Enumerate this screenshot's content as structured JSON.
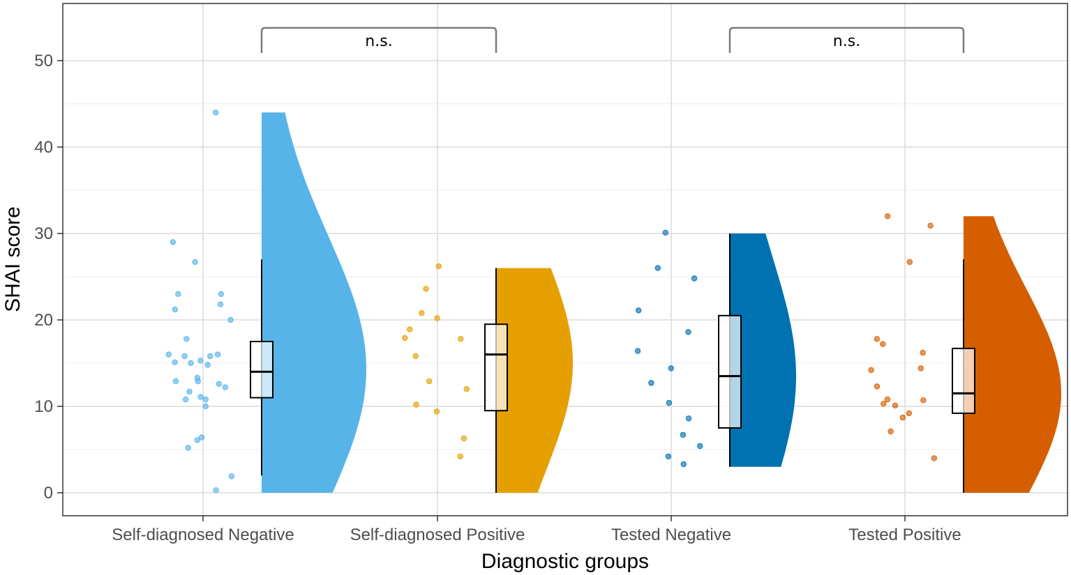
{
  "chart_data": {
    "type": "raincloud",
    "xlabel": "Diagnostic groups",
    "ylabel": "SHAI score",
    "ylim": [
      -2.6,
      54.5
    ],
    "yticks": [
      0,
      10,
      20,
      30,
      40,
      50
    ],
    "grid": true,
    "groups": [
      {
        "label": "Self-diagnosed Negative",
        "color": "#56B4E9",
        "box": {
          "whisker_low": 2,
          "q1": 11,
          "median": 14,
          "q3": 17.5,
          "whisker_high": 27
        },
        "violin": {
          "min": 0,
          "max": 44,
          "peak": 14.3
        },
        "points": [
          44,
          29,
          26.7,
          23,
          23,
          21.8,
          21.2,
          20,
          17.8,
          16,
          16,
          15.8,
          15.8,
          15.3,
          15.1,
          15,
          14.8,
          13.3,
          12.9,
          12.9,
          12.6,
          12.2,
          11.7,
          11.1,
          10.8,
          10.8,
          10,
          6.4,
          6.1,
          5.2,
          1.9,
          0.3
        ]
      },
      {
        "label": "Self-diagnosed Positive",
        "color": "#E69F00",
        "box": {
          "whisker_low": 0,
          "q1": 9.5,
          "median": 16,
          "q3": 19.5,
          "whisker_high": 26
        },
        "violin": {
          "min": 0,
          "max": 26,
          "peak": 15
        },
        "points": [
          26.2,
          23.6,
          20.8,
          20.2,
          18.9,
          17.9,
          17.8,
          15.8,
          12.9,
          12,
          10.2,
          9.4,
          6.3,
          4.2
        ]
      },
      {
        "label": "Tested Negative",
        "color": "#0072B2",
        "box": {
          "whisker_low": 3,
          "q1": 7.5,
          "median": 13.5,
          "q3": 20.5,
          "whisker_high": 30
        },
        "violin": {
          "min": 3,
          "max": 30,
          "peak": 13.5
        },
        "points": [
          30.1,
          26,
          24.8,
          21.1,
          18.6,
          16.4,
          14.4,
          12.7,
          10.4,
          8.6,
          6.7,
          5.4,
          4.2,
          3.3
        ]
      },
      {
        "label": "Tested Positive",
        "color": "#D55E00",
        "box": {
          "whisker_low": 0,
          "q1": 9.2,
          "median": 11.5,
          "q3": 16.7,
          "whisker_high": 27
        },
        "violin": {
          "min": 0,
          "max": 32,
          "peak": 11.5
        },
        "points": [
          32,
          30.9,
          26.7,
          17.8,
          17.2,
          16.2,
          14.4,
          14.2,
          12.3,
          10.8,
          10.7,
          10.3,
          10.1,
          9.2,
          8.7,
          7.1,
          4
        ]
      }
    ],
    "comparisons": [
      {
        "groups": [
          "Self-diagnosed Negative",
          "Self-diagnosed Positive"
        ],
        "label": "n.s."
      },
      {
        "groups": [
          "Tested Negative",
          "Tested Positive"
        ],
        "label": "n.s."
      }
    ]
  }
}
